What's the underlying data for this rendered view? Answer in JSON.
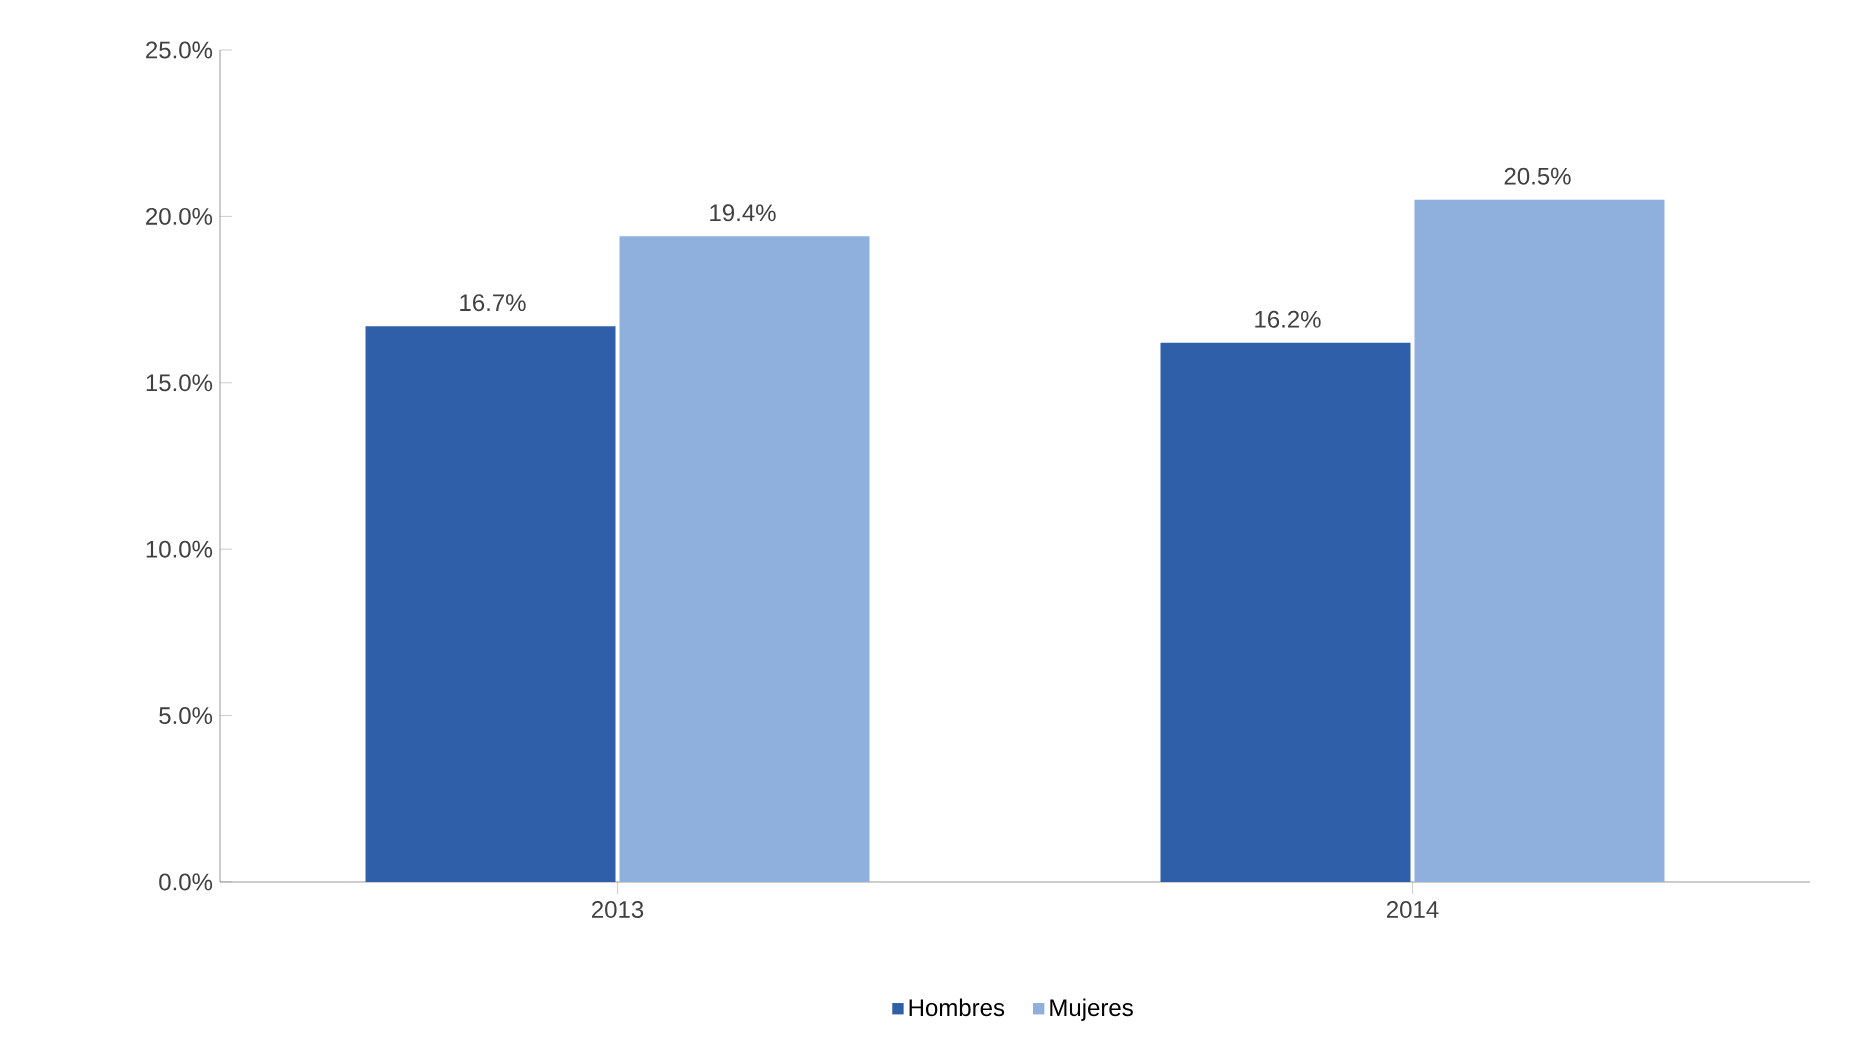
{
  "chart_data": {
    "type": "bar",
    "categories": [
      "2013",
      "2014"
    ],
    "series": [
      {
        "name": "Hombres",
        "color": "#2e5fa8",
        "values": [
          16.7,
          16.2
        ]
      },
      {
        "name": "Mujeres",
        "color": "#8fb0dc",
        "values": [
          19.4,
          20.5
        ]
      }
    ],
    "ylim": [
      0,
      25
    ],
    "yticks": [
      {
        "value": 0,
        "label": "0.0%"
      },
      {
        "value": 5,
        "label": "5.0%"
      },
      {
        "value": 10,
        "label": "10.0%"
      },
      {
        "value": 15,
        "label": "15.0%"
      },
      {
        "value": 20,
        "label": "20.0%"
      },
      {
        "value": 25,
        "label": "25.0%"
      }
    ],
    "value_labels": [
      [
        "16.7%",
        "16.2%"
      ],
      [
        "19.4%",
        "20.5%"
      ]
    ],
    "legend": "bottom",
    "grid": false
  }
}
